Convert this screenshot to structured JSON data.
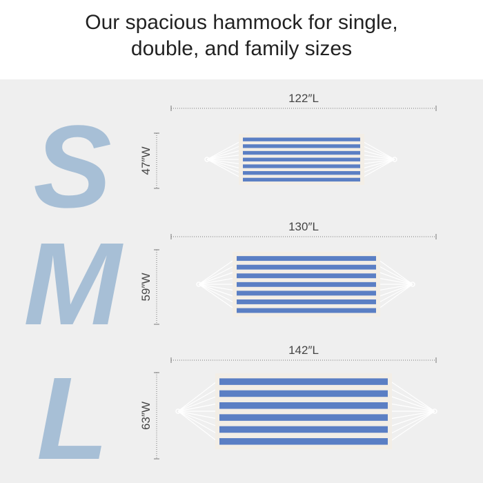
{
  "header": {
    "title_lines": [
      "Our spacious hammock for single,",
      "double, and family sizes"
    ]
  },
  "sizes": [
    {
      "letter": "S",
      "length": "122″L",
      "width": "47″W"
    },
    {
      "letter": "M",
      "length": "130″L",
      "width": "59″W"
    },
    {
      "letter": "L",
      "length": "142″L",
      "width": "63″W"
    }
  ]
}
